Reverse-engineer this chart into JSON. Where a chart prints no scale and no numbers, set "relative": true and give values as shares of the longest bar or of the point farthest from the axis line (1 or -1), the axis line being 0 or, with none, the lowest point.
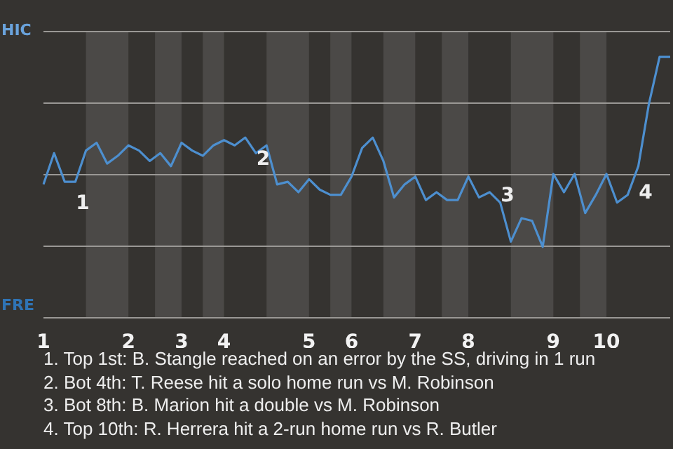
{
  "chart_data": {
    "type": "line",
    "categories": [
      "1",
      null,
      null,
      null,
      null,
      null,
      null,
      null,
      "2",
      null,
      null,
      null,
      null,
      "3",
      null,
      null,
      null,
      "4",
      null,
      null,
      null,
      null,
      null,
      null,
      null,
      "5",
      null,
      null,
      null,
      "6",
      null,
      null,
      null,
      null,
      null,
      "7",
      null,
      null,
      null,
      null,
      "8",
      null,
      null,
      null,
      null,
      null,
      null,
      null,
      "9",
      null,
      null,
      null,
      null,
      "10",
      null,
      null,
      null,
      null,
      null,
      null
    ],
    "series": [
      {
        "color": "#4d8fcf",
        "values": [
          0.51,
          0.63,
          0.52,
          0.52,
          0.64,
          0.67,
          0.59,
          0.62,
          0.66,
          0.64,
          0.6,
          0.63,
          0.58,
          0.67,
          0.64,
          0.62,
          0.66,
          0.68,
          0.66,
          0.69,
          0.63,
          0.66,
          0.51,
          0.52,
          0.48,
          0.53,
          0.49,
          0.47,
          0.47,
          0.54,
          0.65,
          0.69,
          0.6,
          0.46,
          0.51,
          0.54,
          0.45,
          0.48,
          0.45,
          0.45,
          0.54,
          0.46,
          0.48,
          0.44,
          0.29,
          0.38,
          0.37,
          0.27,
          0.55,
          0.48,
          0.55,
          0.4,
          0.47,
          0.55,
          0.44,
          0.47,
          0.58,
          0.82,
          1,
          1
        ]
      }
    ],
    "relative": true,
    "grid": "y",
    "legend": false,
    "marker": "none",
    "line_style": "solid",
    "annotations": [
      {
        "text": "1",
        "x": "1",
        "y": 0.51
      },
      {
        "text": "2",
        "x": "4",
        "y": 0.68
      },
      {
        "text": "3",
        "x": "8",
        "y": 0.54
      },
      {
        "text": "4",
        "x": "10",
        "y": 0.55
      },
      "HIC",
      "FRE",
      "1. Top 1st: B. Stangle reached on an error by the SS, driving in 1 run",
      "2. Bot 4th: T. Reese hit a solo home run vs M. Robinson",
      "3. Bot 8th: B. Marion hit a double vs M. Robinson",
      "4. Top 10th: R. Herrera hit a 2-run home run vs R. Butler"
    ]
  }
}
